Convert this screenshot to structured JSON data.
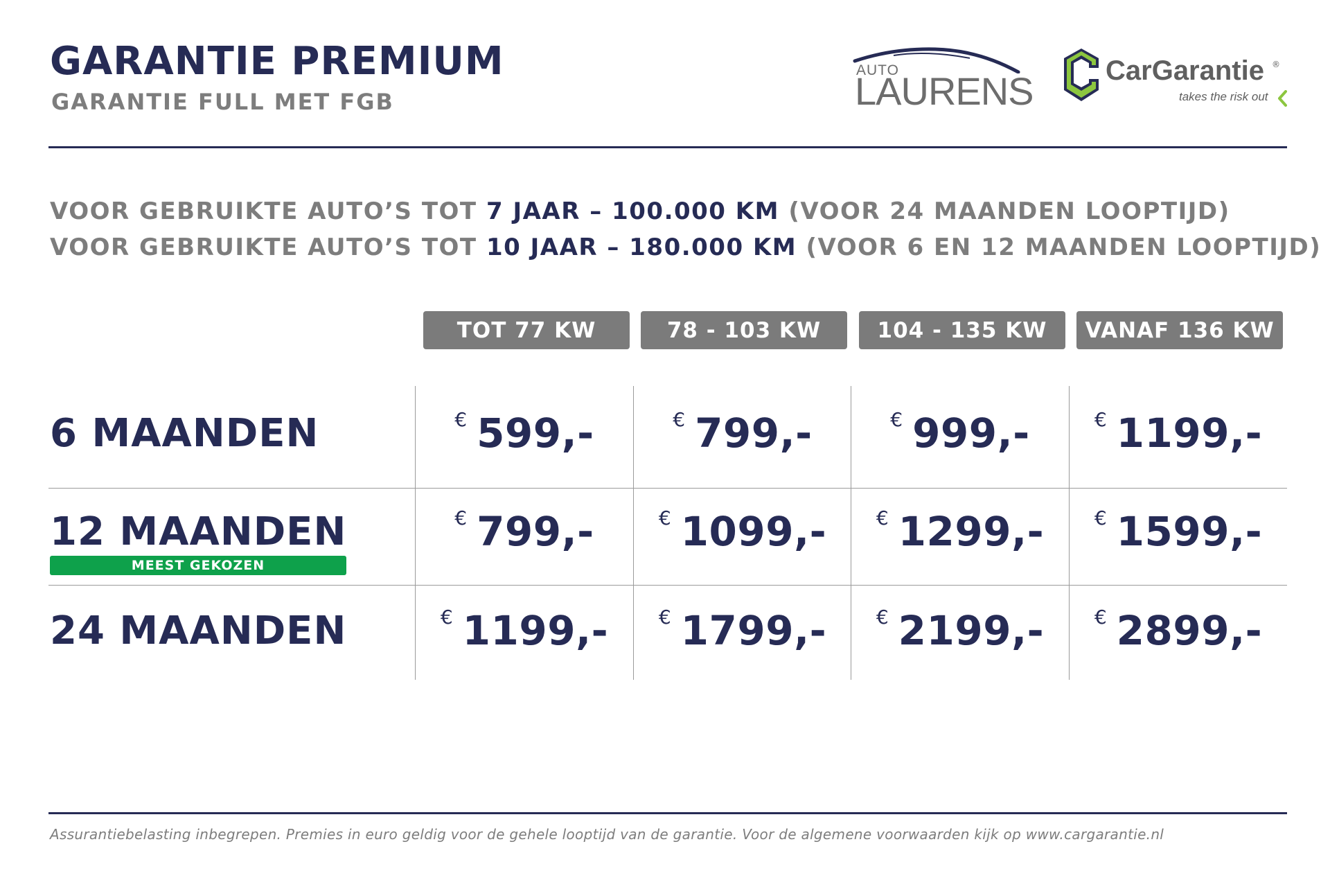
{
  "header": {
    "title": "GARANTIE PREMIUM",
    "subtitle": "GARANTIE FULL MET FGB"
  },
  "logos": {
    "auto_laurens": {
      "small": "AUTO",
      "big": "LAURENS"
    },
    "cargarantie": {
      "name": "CarGarantie",
      "registered": "®",
      "tagline": "takes the risk out"
    }
  },
  "conditions": [
    {
      "pre": "VOOR GEBRUIKTE AUTO’S TOT ",
      "highlight": "7 JAAR – 100.000 KM",
      "post": " (VOOR 24 MAANDEN LOOPTIJD)"
    },
    {
      "pre": "VOOR GEBRUIKTE AUTO’S TOT ",
      "highlight": "10 JAAR – 180.000 KM",
      "post": " (VOOR 6 EN 12 MAANDEN LOOPTIJD)"
    }
  ],
  "table": {
    "currency_symbol": "€",
    "columns": [
      "TOT 77 KW",
      "78 - 103 KW",
      "104 - 135 KW",
      "VANAF 136 KW"
    ],
    "rows": [
      {
        "label": "6 MAANDEN",
        "prices": [
          "599,-",
          "799,-",
          "999,-",
          "1199,-"
        ]
      },
      {
        "label": "12 MAANDEN",
        "badge": "MEEST GEKOZEN",
        "prices": [
          "799,-",
          "1099,-",
          "1299,-",
          "1599,-"
        ]
      },
      {
        "label": "24 MAANDEN",
        "prices": [
          "1199,-",
          "1799,-",
          "2199,-",
          "2899,-"
        ]
      }
    ]
  },
  "footer": {
    "note": "Assurantiebelasting inbegrepen. Premies in euro geldig voor de gehele looptijd van de garantie. Voor de algemene voorwaarden kijk op www.cargarantie.nl"
  },
  "colors": {
    "navy": "#262b55",
    "gray": "#7d7d7d",
    "header_gray": "#7b7b7b",
    "badge_green": "#0ea14b",
    "logo_lime": "#8cc63f"
  }
}
